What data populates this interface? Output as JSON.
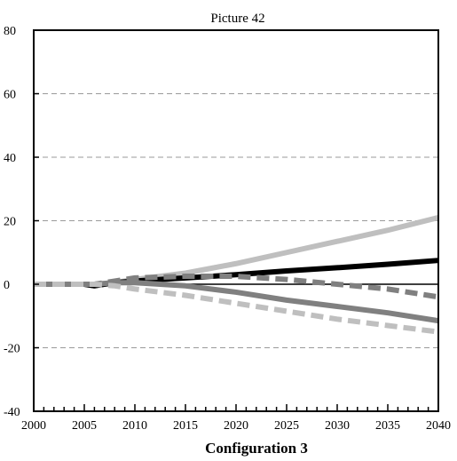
{
  "chart_data": {
    "type": "line",
    "title": "Picture 42",
    "xlabel": "Configuration 3",
    "ylabel": "",
    "xlim": [
      2000,
      2040
    ],
    "ylim": [
      -40,
      80
    ],
    "x_ticks": [
      2000,
      2005,
      2010,
      2015,
      2020,
      2025,
      2030,
      2035,
      2040
    ],
    "y_ticks": [
      80,
      60,
      40,
      20,
      0,
      -20,
      -40
    ],
    "grid": "horizontal dashed",
    "legend": "none",
    "x": [
      2000,
      2005,
      2006,
      2008,
      2010,
      2015,
      2020,
      2025,
      2030,
      2035,
      2040
    ],
    "series": [
      {
        "color": "#bfbfbf",
        "dash": "solid",
        "values": [
          0,
          0,
          -0.5,
          0.5,
          1.5,
          3.5,
          6.5,
          10,
          13.5,
          17,
          21
        ]
      },
      {
        "color": "#000000",
        "dash": "solid",
        "values": [
          0,
          0,
          -0.5,
          0.5,
          1.0,
          2.0,
          3.0,
          4.2,
          5.2,
          6.3,
          7.5
        ]
      },
      {
        "color": "#808080",
        "dash": "dashed",
        "values": [
          0,
          0,
          0,
          1.0,
          2.0,
          2.5,
          2.5,
          1.5,
          0,
          -1.5,
          -4
        ]
      },
      {
        "color": "#808080",
        "dash": "solid",
        "values": [
          0,
          0,
          0,
          0.5,
          0.5,
          -0.5,
          -2.5,
          -5,
          -7,
          -9,
          -11.5
        ]
      },
      {
        "color": "#bfbfbf",
        "dash": "dashed",
        "values": [
          0,
          0,
          0,
          -0.5,
          -1.5,
          -3.5,
          -6,
          -8.5,
          -11,
          -13,
          -15
        ]
      }
    ]
  }
}
